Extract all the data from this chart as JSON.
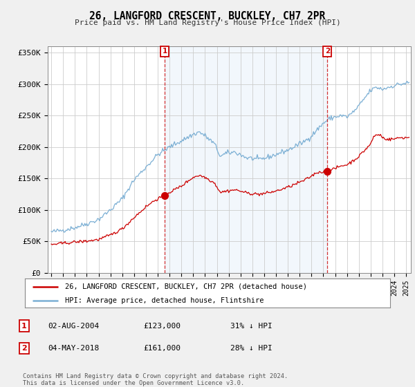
{
  "title": "26, LANGFORD CRESCENT, BUCKLEY, CH7 2PR",
  "subtitle": "Price paid vs. HM Land Registry's House Price Index (HPI)",
  "ylabel_ticks": [
    "£0",
    "£50K",
    "£100K",
    "£150K",
    "£200K",
    "£250K",
    "£300K",
    "£350K"
  ],
  "ytick_values": [
    0,
    50000,
    100000,
    150000,
    200000,
    250000,
    300000,
    350000
  ],
  "ylim": [
    0,
    360000
  ],
  "xlim_start": 1994.7,
  "xlim_end": 2025.4,
  "hpi_color": "#7bafd4",
  "price_color": "#cc0000",
  "fill_color": "#ddeeff",
  "marker1_date": 2004.58,
  "marker1_price": 123000,
  "marker1_label": "1",
  "marker2_date": 2018.34,
  "marker2_price": 161000,
  "marker2_label": "2",
  "legend_line1": "26, LANGFORD CRESCENT, BUCKLEY, CH7 2PR (detached house)",
  "legend_line2": "HPI: Average price, detached house, Flintshire",
  "table_row1": [
    "1",
    "02-AUG-2004",
    "£123,000",
    "31% ↓ HPI"
  ],
  "table_row2": [
    "2",
    "04-MAY-2018",
    "£161,000",
    "28% ↓ HPI"
  ],
  "footer_line1": "Contains HM Land Registry data © Crown copyright and database right 2024.",
  "footer_line2": "This data is licensed under the Open Government Licence v3.0.",
  "background_color": "#f0f0f0",
  "plot_background": "#ffffff"
}
